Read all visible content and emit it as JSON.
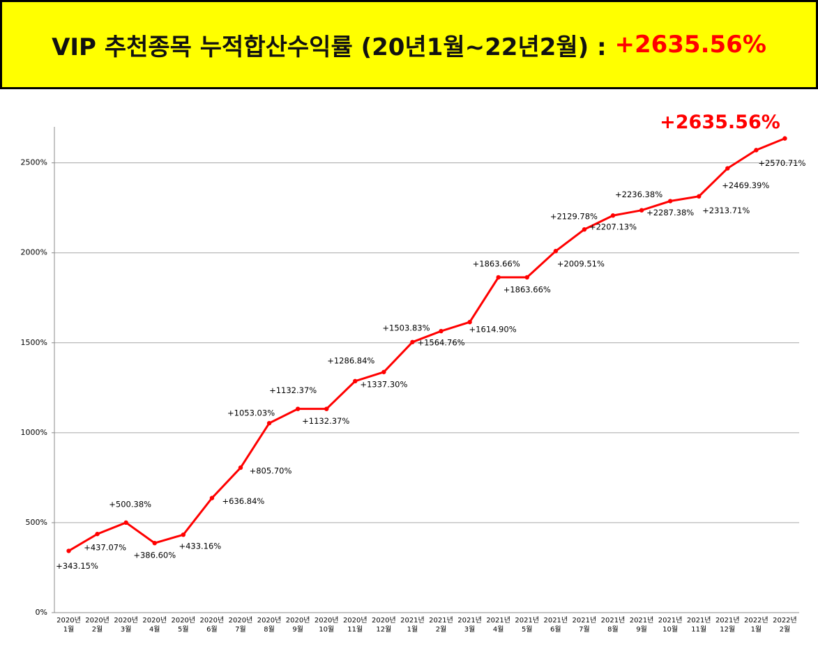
{
  "header": {
    "title": "VIP 추천종목 누적합산수익률 (20년1월~22년2월) : ",
    "title_highlight": "+2635.56%"
  },
  "chart_data": {
    "type": "line",
    "categories": [
      "2020년\n1월",
      "2020년\n2월",
      "2020년\n3월",
      "2020년\n4월",
      "2020년\n5월",
      "2020년\n6월",
      "2020년\n7월",
      "2020년\n8월",
      "2020년\n9월",
      "2020년\n10월",
      "2020년\n11월",
      "2020년\n12월",
      "2021년\n1월",
      "2021년\n2월",
      "2021년\n3월",
      "2021년\n4월",
      "2021년\n5월",
      "2021년\n6월",
      "2021년\n7월",
      "2021년\n8월",
      "2021년\n9월",
      "2021년\n10월",
      "2021년\n11월",
      "2021년\n12월",
      "2022년\n1월",
      "2022년\n2월"
    ],
    "series": [
      {
        "color": "#ff0000",
        "values": [
          343.15,
          437.07,
          500.38,
          386.6,
          433.16,
          636.84,
          805.7,
          1053.03,
          1132.37,
          1132.37,
          1286.84,
          1337.3,
          1503.83,
          1564.76,
          1614.9,
          1863.66,
          1863.66,
          2009.51,
          2129.78,
          2207.13,
          2236.38,
          2287.38,
          2313.71,
          2469.39,
          2570.71,
          2635.56
        ],
        "value_labels": [
          "+343.15%",
          "+437.07%",
          "+500.38%",
          "+386.60%",
          "+433.16%",
          "+636.84%",
          "+805.70%",
          "+1053.03%",
          "+1132.37%",
          "+1132.37%",
          "+1286.84%",
          "+1337.30%",
          "+1503.83%",
          "+1564.76%",
          "+1614.90%",
          "+1863.66%",
          "+1863.66%",
          "+2009.51%",
          "+2129.78%",
          "+2207.13%",
          "+2236.38%",
          "+2287.38%",
          "+2313.71%",
          "+2469.39%",
          "+2570.71%",
          "+2635.56%"
        ]
      }
    ],
    "ylim": [
      0,
      2700
    ],
    "yticks": [
      {
        "value": 0,
        "label": "0%"
      },
      {
        "value": 500,
        "label": "500%"
      },
      {
        "value": 1000,
        "label": "1000%"
      },
      {
        "value": 1500,
        "label": "1500%"
      },
      {
        "value": 2000,
        "label": "2000%"
      },
      {
        "value": 2500,
        "label": "2500%"
      }
    ],
    "grid": true
  }
}
